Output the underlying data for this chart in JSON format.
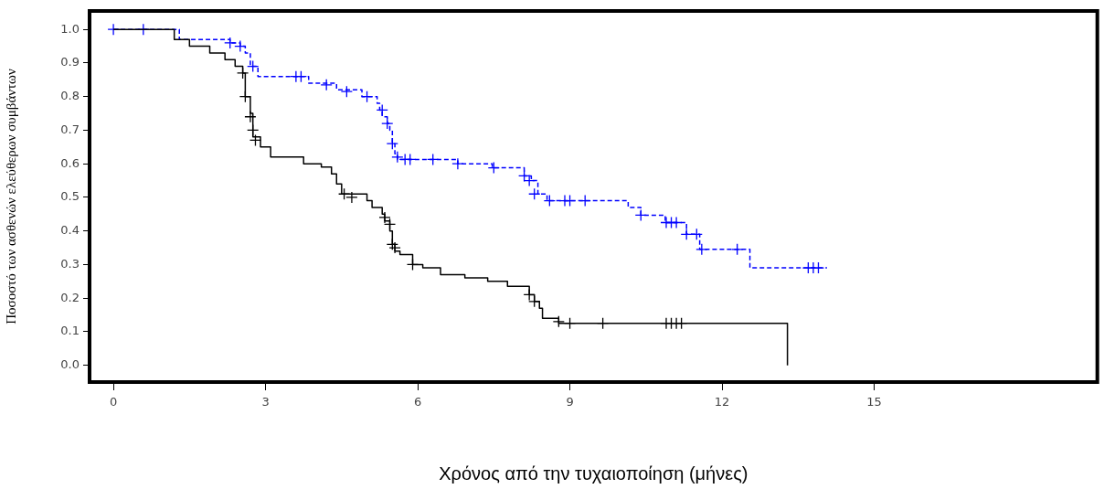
{
  "chart_data": {
    "type": "step",
    "xlabel": "Χρόνος από την τυχαιοποίηση (μήνες)",
    "ylabel": "Ποσοστό των ασθενών ελεύθερων συμβάντων",
    "xlim": [
      -0.47,
      19.4
    ],
    "ylim": [
      -0.05,
      1.055
    ],
    "xticks": [
      0,
      3,
      6,
      9,
      12,
      15
    ],
    "yticks": [
      {
        "value": 0,
        "label": "0.0"
      },
      {
        "value": 0.1,
        "label": "0.1"
      },
      {
        "value": 0.2,
        "label": "0.2"
      },
      {
        "value": 0.3,
        "label": "0.3"
      },
      {
        "value": 0.4,
        "label": "0.4"
      },
      {
        "value": 0.5,
        "label": "0.5"
      },
      {
        "value": 0.6,
        "label": "0.6"
      },
      {
        "value": 0.7,
        "label": "0.7"
      },
      {
        "value": 0.8,
        "label": "0.8"
      },
      {
        "value": 0.9,
        "label": "0.9"
      },
      {
        "value": 1,
        "label": "1.0"
      }
    ],
    "grid": false,
    "legend": false,
    "marker": "none",
    "series": [
      {
        "type": "step",
        "color": "#000000",
        "line_style": "solid",
        "x": [
          0,
          1.2,
          1.5,
          1.9,
          2.2,
          2.4,
          2.55,
          2.6,
          2.7,
          2.75,
          2.9,
          3.1,
          3.75,
          4.1,
          4.3,
          4.4,
          4.5,
          5.0,
          5.1,
          5.3,
          5.35,
          5.45,
          5.5,
          5.55,
          5.65,
          5.9,
          6.1,
          6.45,
          6.93,
          7.38,
          7.77,
          8.15,
          8.2,
          8.3,
          8.4,
          8.46,
          8.78,
          13.29
        ],
        "values": [
          1,
          0.97,
          0.95,
          0.93,
          0.91,
          0.89,
          0.87,
          0.8,
          0.75,
          0.68,
          0.65,
          0.62,
          0.6,
          0.59,
          0.57,
          0.54,
          0.51,
          0.49,
          0.47,
          0.45,
          0.43,
          0.4,
          0.36,
          0.34,
          0.33,
          0.3,
          0.29,
          0.27,
          0.26,
          0.25,
          0.235,
          0.235,
          0.21,
          0.19,
          0.17,
          0.14,
          0.125,
          0
        ]
      },
      {
        "type": "step",
        "color": "#0000ff",
        "line_style": "dashed",
        "x": [
          0,
          1.3,
          2.3,
          2.5,
          2.6,
          2.7,
          2.85,
          3.85,
          4.4,
          4.9,
          5.2,
          5.25,
          5.3,
          5.4,
          5.45,
          5.5,
          5.55,
          5.6,
          6.79,
          7.47,
          8.1,
          8.24,
          8.37,
          8.55,
          10.15,
          10.4,
          10.88,
          11.3,
          11.56,
          12.55,
          14.07
        ],
        "values": [
          1,
          0.97,
          0.96,
          0.95,
          0.93,
          0.89,
          0.86,
          0.84,
          0.82,
          0.8,
          0.78,
          0.76,
          0.74,
          0.72,
          0.7,
          0.66,
          0.63,
          0.613,
          0.6,
          0.588,
          0.564,
          0.55,
          0.51,
          0.49,
          0.47,
          0.447,
          0.425,
          0.39,
          0.345,
          0.29,
          0.29
        ]
      },
      {
        "type": "scatter",
        "color": "#000000",
        "marker": "cross",
        "x": [
          2.55,
          2.6,
          2.7,
          2.75,
          2.8,
          4.55,
          4.7,
          5.35,
          5.45,
          5.5,
          5.55,
          5.9,
          8.2,
          8.3,
          8.78,
          9.0,
          9.65,
          10.9,
          11.0,
          11.1,
          11.2
        ],
        "values": [
          0.87,
          0.8,
          0.74,
          0.7,
          0.67,
          0.51,
          0.5,
          0.44,
          0.42,
          0.36,
          0.35,
          0.3,
          0.21,
          0.19,
          0.13,
          0.125,
          0.125,
          0.125,
          0.125,
          0.125,
          0.125
        ]
      },
      {
        "type": "scatter",
        "color": "#0000ff",
        "marker": "cross",
        "x": [
          0,
          0.59,
          2.3,
          2.5,
          2.75,
          3.6,
          3.7,
          4.2,
          4.6,
          5.0,
          5.3,
          5.4,
          5.5,
          5.6,
          5.75,
          5.85,
          6.3,
          6.79,
          7.5,
          8.1,
          8.2,
          8.3,
          8.6,
          8.9,
          9.0,
          9.3,
          10.4,
          10.9,
          11.0,
          11.1,
          11.3,
          11.5,
          11.6,
          12.3,
          13.7,
          13.8,
          13.9
        ],
        "values": [
          1,
          1,
          0.96,
          0.95,
          0.89,
          0.86,
          0.86,
          0.835,
          0.815,
          0.8,
          0.76,
          0.72,
          0.66,
          0.62,
          0.613,
          0.613,
          0.613,
          0.6,
          0.588,
          0.564,
          0.55,
          0.51,
          0.49,
          0.49,
          0.49,
          0.49,
          0.447,
          0.425,
          0.425,
          0.425,
          0.39,
          0.39,
          0.345,
          0.345,
          0.29,
          0.29,
          0.29
        ]
      }
    ]
  }
}
